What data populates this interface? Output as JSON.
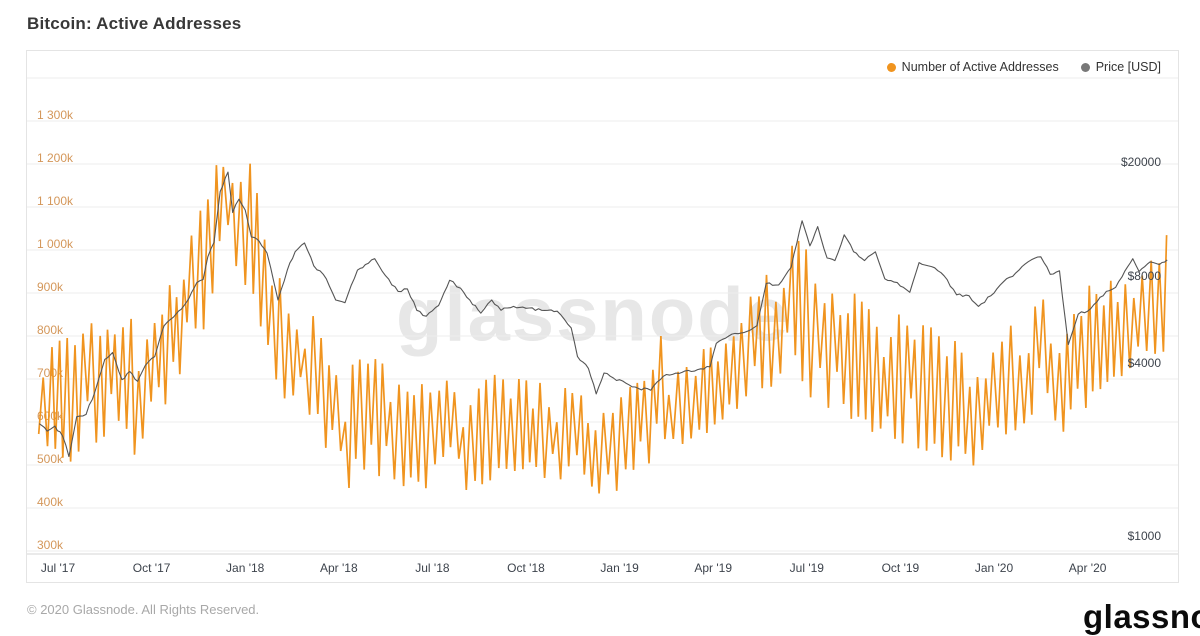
{
  "page": {
    "title": "Bitcoin: Active Addresses",
    "watermark": "glassnode",
    "footer_copyright": "© 2020 Glassnode. All Rights Reserved.",
    "brand_logo": "glassnode"
  },
  "legend": [
    {
      "label": "Number of Active Addresses",
      "color": "#f0941f"
    },
    {
      "label": "Price [USD]",
      "color": "#787878"
    }
  ],
  "colors": {
    "active_line": "#f0941f",
    "price_line": "#555555",
    "grid": "#ededed",
    "axis_line": "#d6d6d6",
    "left_labels": "#d4975a",
    "right_labels": "#3d434c",
    "watermark": "#e7e7e7"
  },
  "chart_data": {
    "type": "line",
    "title": "Bitcoin: Active Addresses",
    "grid": "horizontal",
    "legend_position": "top-right",
    "x_axis": {
      "unit": "months since Jul 2017 (t=0 at Jul '17, monthly spacing)",
      "range_t": [
        -0.62,
        35.58
      ],
      "ticks": [
        {
          "t": 0,
          "label": "Jul '17"
        },
        {
          "t": 3,
          "label": "Oct '17"
        },
        {
          "t": 6,
          "label": "Jan '18"
        },
        {
          "t": 9,
          "label": "Apr '18"
        },
        {
          "t": 12,
          "label": "Jul '18"
        },
        {
          "t": 15,
          "label": "Oct '18"
        },
        {
          "t": 18,
          "label": "Jan '19"
        },
        {
          "t": 21,
          "label": "Apr '19"
        },
        {
          "t": 24,
          "label": "Jul '19"
        },
        {
          "t": 27,
          "label": "Oct '19"
        },
        {
          "t": 30,
          "label": "Jan '20"
        },
        {
          "t": 33,
          "label": "Apr '20"
        }
      ]
    },
    "left_axis": {
      "series": "Number of Active Addresses",
      "scale": "linear",
      "unit": "thousands of addresses",
      "max_k": 1400,
      "ticks": [
        {
          "v": 300,
          "label": "300k"
        },
        {
          "v": 400,
          "label": "400k"
        },
        {
          "v": 500,
          "label": "500k"
        },
        {
          "v": 600,
          "label": "600k"
        },
        {
          "v": 700,
          "label": "700k"
        },
        {
          "v": 800,
          "label": "800k"
        },
        {
          "v": 900,
          "label": "900k"
        },
        {
          "v": 1000,
          "label": "1 000k"
        },
        {
          "v": 1100,
          "label": "1 100k"
        },
        {
          "v": 1200,
          "label": "1 200k"
        },
        {
          "v": 1300,
          "label": "1 300k"
        }
      ]
    },
    "right_axis": {
      "series": "Price [USD]",
      "scale": "log",
      "unit": "USD",
      "ticks": [
        {
          "v": 1000,
          "label": "$1000"
        },
        {
          "v": 4000,
          "label": "$4000"
        },
        {
          "v": 8000,
          "label": "$8000"
        },
        {
          "v": 20000,
          "label": "$20000"
        }
      ]
    },
    "series": [
      {
        "name": "Number of Active Addresses",
        "axis": "left",
        "style": "daily sawtooth oscillating between weekly low/high envelope",
        "band_t_lo_hi_k": [
          [
            -0.6,
            570,
            690
          ],
          [
            -0.3,
            540,
            760
          ],
          [
            0,
            520,
            800
          ],
          [
            0.5,
            480,
            800
          ],
          [
            1,
            540,
            830
          ],
          [
            1.5,
            560,
            860
          ],
          [
            2,
            560,
            905
          ],
          [
            2.5,
            520,
            840
          ],
          [
            3,
            600,
            880
          ],
          [
            3.5,
            640,
            920
          ],
          [
            4,
            690,
            980
          ],
          [
            4.5,
            750,
            1080
          ],
          [
            5,
            900,
            1180
          ],
          [
            5.45,
            1000,
            1281
          ],
          [
            5.8,
            950,
            1180
          ],
          [
            6.1,
            900,
            1228
          ],
          [
            6.5,
            820,
            1120
          ],
          [
            7,
            660,
            950
          ],
          [
            7.5,
            620,
            880
          ],
          [
            8,
            600,
            870
          ],
          [
            8.5,
            560,
            830
          ],
          [
            9,
            400,
            700
          ],
          [
            9.5,
            470,
            740
          ],
          [
            10,
            480,
            760
          ],
          [
            10.5,
            470,
            730
          ],
          [
            11,
            450,
            710
          ],
          [
            11.5,
            440,
            700
          ],
          [
            12,
            430,
            690
          ],
          [
            12.5,
            440,
            700
          ],
          [
            13,
            440,
            690
          ],
          [
            13.5,
            450,
            700
          ],
          [
            14,
            470,
            710
          ],
          [
            14.5,
            480,
            700
          ],
          [
            15,
            480,
            700
          ],
          [
            15.5,
            470,
            690
          ],
          [
            16,
            470,
            690
          ],
          [
            16.5,
            450,
            670
          ],
          [
            17,
            440,
            660
          ],
          [
            17.5,
            430,
            650
          ],
          [
            18,
            430,
            670
          ],
          [
            18.5,
            470,
            690
          ],
          [
            19,
            490,
            700
          ],
          [
            19.3,
            520,
            812
          ],
          [
            19.6,
            520,
            720
          ],
          [
            20,
            540,
            740
          ],
          [
            20.5,
            560,
            760
          ],
          [
            21,
            580,
            790
          ],
          [
            21.5,
            620,
            840
          ],
          [
            22,
            640,
            880
          ],
          [
            22.5,
            660,
            930
          ],
          [
            23,
            680,
            980
          ],
          [
            23.6,
            700,
            1035
          ],
          [
            24,
            660,
            1000
          ],
          [
            24.5,
            640,
            970
          ],
          [
            25,
            620,
            930
          ],
          [
            25.5,
            600,
            900
          ],
          [
            26,
            580,
            880
          ],
          [
            26.5,
            560,
            860
          ],
          [
            27,
            550,
            850
          ],
          [
            27.5,
            540,
            840
          ],
          [
            28,
            530,
            820
          ],
          [
            28.5,
            510,
            800
          ],
          [
            29,
            490,
            780
          ],
          [
            29.5,
            470,
            750
          ],
          [
            30,
            510,
            790
          ],
          [
            30.5,
            550,
            830
          ],
          [
            31,
            600,
            860
          ],
          [
            31.5,
            640,
            890
          ],
          [
            32,
            600,
            880
          ],
          [
            32.4,
            560,
            840
          ],
          [
            33,
            640,
            920
          ],
          [
            33.5,
            680,
            940
          ],
          [
            34,
            700,
            950
          ],
          [
            34.5,
            700,
            960
          ],
          [
            35,
            720,
            970
          ],
          [
            35.5,
            750,
            1035
          ]
        ]
      },
      {
        "name": "Price [USD]",
        "axis": "right",
        "points_t_usd": [
          [
            -0.6,
            2600
          ],
          [
            -0.35,
            2450
          ],
          [
            -0.1,
            2550
          ],
          [
            0.15,
            2350
          ],
          [
            0.35,
            2000
          ],
          [
            0.6,
            2750
          ],
          [
            0.9,
            2800
          ],
          [
            1.2,
            3400
          ],
          [
            1.5,
            4350
          ],
          [
            1.75,
            4600
          ],
          [
            2.05,
            3700
          ],
          [
            2.3,
            3950
          ],
          [
            2.55,
            3650
          ],
          [
            2.8,
            4150
          ],
          [
            3.1,
            4450
          ],
          [
            3.4,
            5700
          ],
          [
            3.7,
            6100
          ],
          [
            3.95,
            6500
          ],
          [
            4.2,
            7100
          ],
          [
            4.45,
            8050
          ],
          [
            4.65,
            8250
          ],
          [
            4.8,
            9900
          ],
          [
            5,
            11100
          ],
          [
            5.2,
            16700
          ],
          [
            5.45,
            19500
          ],
          [
            5.6,
            14100
          ],
          [
            5.8,
            15700
          ],
          [
            6,
            14400
          ],
          [
            6.2,
            11600
          ],
          [
            6.45,
            11200
          ],
          [
            6.7,
            10200
          ],
          [
            7.05,
            7000
          ],
          [
            7.35,
            8900
          ],
          [
            7.6,
            10300
          ],
          [
            7.9,
            11050
          ],
          [
            8.2,
            9200
          ],
          [
            8.6,
            8300
          ],
          [
            8.9,
            7000
          ],
          [
            9.2,
            6850
          ],
          [
            9.6,
            8900
          ],
          [
            9.85,
            9300
          ],
          [
            10.15,
            9750
          ],
          [
            10.5,
            8500
          ],
          [
            10.9,
            7500
          ],
          [
            11.2,
            7650
          ],
          [
            11.5,
            6450
          ],
          [
            11.8,
            6150
          ],
          [
            12.2,
            6700
          ],
          [
            12.55,
            8200
          ],
          [
            12.9,
            7700
          ],
          [
            13.2,
            7000
          ],
          [
            13.55,
            6300
          ],
          [
            13.9,
            7000
          ],
          [
            14.2,
            6450
          ],
          [
            14.6,
            6650
          ],
          [
            15,
            6550
          ],
          [
            15.5,
            6450
          ],
          [
            16,
            6400
          ],
          [
            16.45,
            5600
          ],
          [
            16.65,
            4450
          ],
          [
            17,
            4050
          ],
          [
            17.25,
            3300
          ],
          [
            17.5,
            3900
          ],
          [
            17.8,
            3750
          ],
          [
            18.2,
            3600
          ],
          [
            18.6,
            3450
          ],
          [
            19,
            3400
          ],
          [
            19.4,
            3800
          ],
          [
            19.8,
            3900
          ],
          [
            20.3,
            3950
          ],
          [
            20.9,
            4100
          ],
          [
            21.1,
            4950
          ],
          [
            21.5,
            5250
          ],
          [
            22,
            5400
          ],
          [
            22.4,
            5700
          ],
          [
            22.7,
            8000
          ],
          [
            23.1,
            7900
          ],
          [
            23.5,
            9100
          ],
          [
            23.85,
            13200
          ],
          [
            24.1,
            10800
          ],
          [
            24.35,
            12600
          ],
          [
            24.65,
            9800
          ],
          [
            24.9,
            9600
          ],
          [
            25.2,
            11800
          ],
          [
            25.5,
            10300
          ],
          [
            25.85,
            9600
          ],
          [
            26.2,
            10300
          ],
          [
            26.5,
            8300
          ],
          [
            26.9,
            8050
          ],
          [
            27.3,
            7450
          ],
          [
            27.6,
            9450
          ],
          [
            28,
            9150
          ],
          [
            28.4,
            8500
          ],
          [
            28.8,
            7300
          ],
          [
            29.2,
            7250
          ],
          [
            29.5,
            6650
          ],
          [
            29.9,
            7250
          ],
          [
            30.3,
            8100
          ],
          [
            30.7,
            8700
          ],
          [
            31,
            9350
          ],
          [
            31.5,
            9900
          ],
          [
            31.8,
            8600
          ],
          [
            32.1,
            8850
          ],
          [
            32.38,
            4900
          ],
          [
            32.7,
            6250
          ],
          [
            33,
            6400
          ],
          [
            33.3,
            6900
          ],
          [
            33.6,
            7500
          ],
          [
            33.9,
            7750
          ],
          [
            34.2,
            8850
          ],
          [
            34.45,
            9750
          ],
          [
            34.65,
            8800
          ],
          [
            35,
            9500
          ],
          [
            35.3,
            9300
          ],
          [
            35.55,
            9650
          ]
        ]
      }
    ]
  }
}
